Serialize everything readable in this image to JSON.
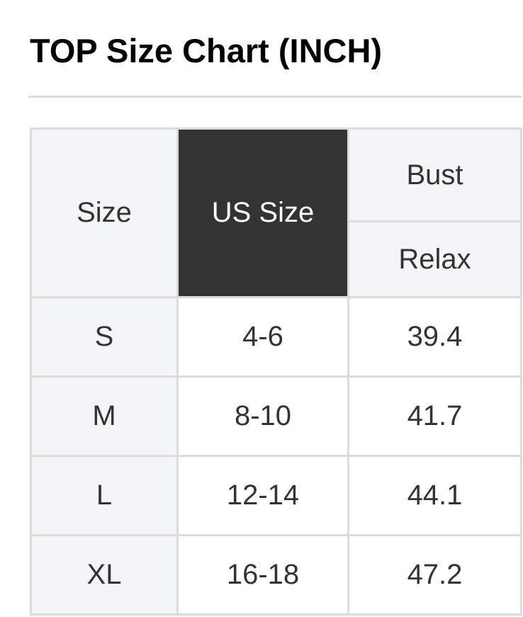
{
  "title": "TOP Size Chart (INCH)",
  "table": {
    "headers": {
      "size": "Size",
      "us_size": "US Size",
      "bust": "Bust",
      "relax": "Relax"
    },
    "rows": [
      {
        "size": "S",
        "us_size": "4-6",
        "bust_relax": "39.4"
      },
      {
        "size": "M",
        "us_size": "8-10",
        "bust_relax": "41.7"
      },
      {
        "size": "L",
        "us_size": "12-14",
        "bust_relax": "44.1"
      },
      {
        "size": "XL",
        "us_size": "16-18",
        "bust_relax": "47.2"
      }
    ]
  },
  "colors": {
    "header_bg": "#f4f5f7",
    "highlight_header_bg": "#333333",
    "border": "#dcdcdc"
  }
}
